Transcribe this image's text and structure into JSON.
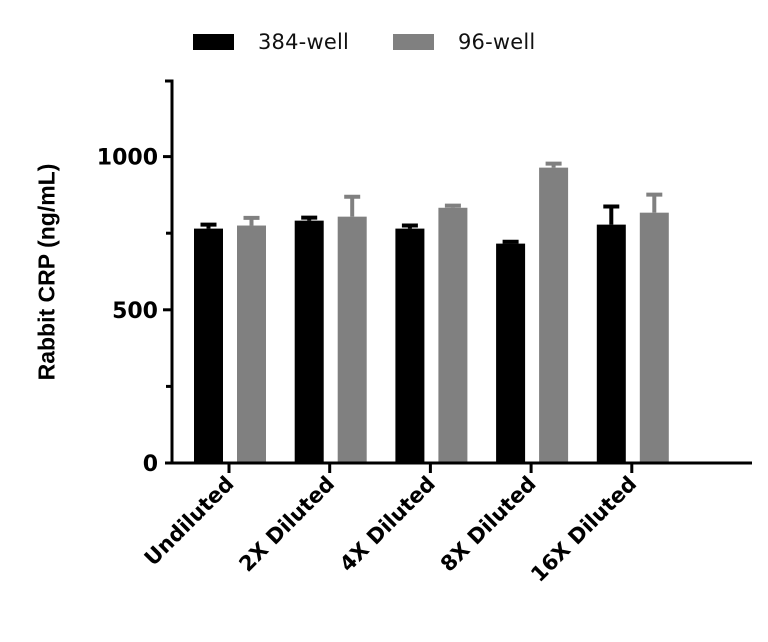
{
  "chart_data": {
    "type": "bar",
    "title": "",
    "xlabel": "",
    "ylabel": "Rabbit CRP (ng/mL)",
    "ylim": [
      0,
      1250
    ],
    "yticks": [
      0,
      500,
      1000
    ],
    "yticks_minor": [
      250,
      750
    ],
    "grid": false,
    "legend_position": "top",
    "categories": [
      "Undiluted",
      "2X Diluted",
      "4X Diluted",
      "8X Diluted",
      "16X Diluted"
    ],
    "series": [
      {
        "name": "384-well",
        "color": "#000000",
        "values": [
          765,
          791,
          765,
          716,
          778
        ],
        "error_upper": [
          778,
          801,
          775,
          722,
          837
        ]
      },
      {
        "name": "96-well",
        "color": "#808080",
        "values": [
          775,
          804,
          833,
          964,
          817
        ],
        "error_upper": [
          800,
          869,
          840,
          977,
          876
        ]
      }
    ]
  },
  "legend": {
    "items": [
      {
        "label": "384-well",
        "color": "#000000"
      },
      {
        "label": "96-well",
        "color": "#808080"
      }
    ]
  },
  "axes": {
    "ylabel": "Rabbit CRP (ng/mL)",
    "ytick_labels": [
      "0",
      "500",
      "1000"
    ]
  }
}
